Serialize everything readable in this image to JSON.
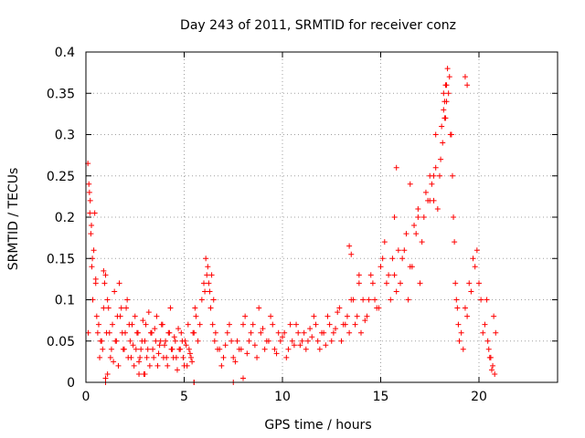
{
  "chart_data": {
    "type": "scatter",
    "title": "Day 243 of 2011, SRMTID for receiver conz",
    "xlabel": "GPS time / hours",
    "ylabel": "SRMTID / TECUs",
    "xlim": [
      0,
      24
    ],
    "ylim": [
      0,
      0.4
    ],
    "xticks": [
      0,
      5,
      10,
      15,
      20
    ],
    "xtick_labels": [
      "0",
      "5",
      "10",
      "15",
      "20"
    ],
    "yticks": [
      0,
      0.05,
      0.1,
      0.15,
      0.2,
      0.25,
      0.3,
      0.35,
      0.4
    ],
    "ytick_labels": [
      "0",
      "0.05",
      "0.1",
      "0.15",
      "0.2",
      "0.25",
      "0.3",
      "0.35",
      "0.4"
    ],
    "grid": true,
    "marker": "+",
    "color": "#ff0000",
    "series": [
      {
        "name": "SRMTID",
        "x": [
          0.1,
          0.15,
          0.2,
          0.25,
          0.3,
          0.35,
          0.4,
          0.45,
          0.5,
          0.55,
          0.6,
          0.7,
          0.8,
          0.9,
          1.0,
          1.1,
          1.2,
          1.3,
          1.4,
          1.5,
          1.6,
          1.7,
          1.8,
          1.9,
          2.0,
          2.1,
          2.2,
          2.3,
          2.4,
          2.5,
          2.6,
          2.7,
          2.8,
          2.9,
          3.0,
          3.1,
          3.2,
          3.3,
          3.4,
          3.5,
          3.6,
          3.7,
          3.8,
          3.9,
          4.0,
          4.1,
          4.2,
          4.3,
          4.4,
          4.5,
          4.6,
          4.7,
          4.8,
          4.9,
          5.0,
          5.1,
          5.2,
          5.3,
          5.4,
          5.5,
          5.6,
          5.8,
          6.0,
          6.1,
          6.2,
          6.3,
          6.4,
          6.5,
          6.6,
          6.8,
          7.0,
          7.2,
          7.4,
          7.6,
          7.8,
          8.0,
          8.2,
          8.4,
          8.6,
          8.8,
          9.0,
          9.2,
          9.4,
          9.6,
          9.8,
          10.0,
          10.2,
          10.4,
          10.6,
          10.8,
          11.0,
          11.2,
          11.4,
          11.6,
          11.8,
          12.0,
          12.2,
          12.4,
          12.6,
          12.8,
          13.0,
          13.2,
          13.4,
          13.6,
          13.8,
          14.0,
          14.2,
          14.4,
          14.6,
          14.8,
          15.0,
          15.2,
          15.4,
          15.6,
          15.8,
          16.0,
          16.2,
          16.4,
          16.6,
          16.8,
          17.0,
          17.2,
          17.4,
          17.6,
          17.8,
          18.0,
          18.1,
          18.2,
          18.3,
          18.4,
          18.5,
          18.6,
          18.7,
          18.8,
          18.9,
          19.0,
          19.2,
          19.4,
          19.6,
          19.8,
          20.0,
          20.2,
          20.4,
          20.5,
          20.6,
          20.7,
          20.8,
          0.12,
          0.18,
          0.22,
          0.28,
          0.33,
          0.5,
          0.65,
          0.75,
          0.85,
          0.95,
          1.05,
          1.15,
          1.25,
          1.35,
          1.45,
          1.55,
          1.65,
          1.75,
          1.85,
          1.95,
          2.05,
          2.15,
          2.25,
          2.35,
          2.45,
          2.55,
          2.65,
          2.75,
          2.85,
          2.95,
          3.05,
          3.15,
          3.25,
          3.35,
          3.45,
          3.55,
          3.65,
          3.75,
          3.85,
          3.95,
          4.05,
          4.15,
          4.25,
          4.35,
          4.45,
          4.55,
          4.65,
          4.75,
          4.85,
          4.95,
          5.05,
          5.15,
          5.25,
          5.35,
          5.45,
          5.55,
          5.7,
          5.9,
          6.05,
          6.15,
          6.25,
          6.35,
          6.45,
          6.55,
          6.7,
          6.9,
          7.1,
          7.3,
          7.5,
          7.7,
          7.9,
          8.1,
          8.3,
          8.5,
          8.7,
          8.9,
          9.1,
          9.3,
          9.5,
          9.7,
          9.9,
          10.1,
          10.3,
          10.5,
          10.7,
          10.9,
          11.1,
          11.3,
          11.5,
          11.7,
          11.9,
          12.1,
          12.3,
          12.5,
          12.7,
          12.9,
          13.1,
          13.3,
          13.5,
          13.7,
          13.9,
          14.1,
          14.3,
          14.5,
          14.7,
          14.9,
          15.1,
          15.3,
          15.5,
          15.7,
          15.9,
          16.1,
          16.3,
          16.5,
          16.7,
          16.9,
          17.1,
          17.3,
          17.5,
          17.7,
          17.9,
          18.05,
          18.15,
          18.25,
          18.35,
          18.45,
          18.55,
          18.65,
          18.75,
          18.85,
          18.95,
          19.1,
          19.3,
          19.5,
          19.7,
          19.9,
          20.1,
          20.3,
          20.45,
          20.55,
          20.65,
          20.75,
          20.85,
          1.0,
          1.0,
          1.1,
          2.7,
          3.0,
          5.5,
          5.5,
          7.5,
          8.0,
          0.9,
          17.8,
          18.2,
          18.25,
          18.3,
          18.35,
          19.3,
          19.4,
          17.5,
          17.7,
          15.7,
          15.8,
          16.5,
          16.9,
          13.4,
          13.5,
          13.9
        ],
        "y": [
          0.265,
          0.24,
          0.205,
          0.18,
          0.14,
          0.1,
          0.16,
          0.205,
          0.125,
          0.08,
          0.06,
          0.03,
          0.05,
          0.09,
          0.13,
          0.1,
          0.06,
          0.04,
          0.025,
          0.05,
          0.08,
          0.12,
          0.09,
          0.04,
          0.06,
          0.1,
          0.07,
          0.03,
          0.045,
          0.08,
          0.06,
          0.025,
          0.04,
          0.075,
          0.05,
          0.03,
          0.085,
          0.06,
          0.04,
          0.065,
          0.08,
          0.035,
          0.05,
          0.07,
          0.045,
          0.03,
          0.06,
          0.09,
          0.04,
          0.055,
          0.03,
          0.065,
          0.04,
          0.05,
          0.02,
          0.045,
          0.07,
          0.035,
          0.025,
          0.06,
          0.08,
          0.07,
          0.12,
          0.15,
          0.14,
          0.11,
          0.13,
          0.1,
          0.06,
          0.04,
          0.03,
          0.06,
          0.05,
          0.025,
          0.04,
          0.07,
          0.035,
          0.06,
          0.045,
          0.09,
          0.065,
          0.05,
          0.08,
          0.04,
          0.06,
          0.055,
          0.03,
          0.07,
          0.045,
          0.06,
          0.05,
          0.04,
          0.065,
          0.08,
          0.05,
          0.06,
          0.045,
          0.07,
          0.06,
          0.085,
          0.05,
          0.07,
          0.06,
          0.1,
          0.08,
          0.06,
          0.075,
          0.1,
          0.12,
          0.09,
          0.14,
          0.17,
          0.13,
          0.15,
          0.11,
          0.12,
          0.16,
          0.1,
          0.14,
          0.18,
          0.12,
          0.2,
          0.22,
          0.24,
          0.26,
          0.25,
          0.31,
          0.33,
          0.36,
          0.38,
          0.37,
          0.3,
          0.2,
          0.12,
          0.09,
          0.05,
          0.04,
          0.08,
          0.11,
          0.14,
          0.12,
          0.06,
          0.1,
          0.04,
          0.03,
          0.02,
          0.01,
          0.06,
          0.23,
          0.22,
          0.19,
          0.15,
          0.12,
          0.07,
          0.05,
          0.04,
          0.12,
          0.06,
          0.09,
          0.03,
          0.07,
          0.11,
          0.05,
          0.02,
          0.08,
          0.06,
          0.04,
          0.09,
          0.03,
          0.05,
          0.07,
          0.02,
          0.04,
          0.06,
          0.03,
          0.05,
          0.01,
          0.07,
          0.04,
          0.02,
          0.06,
          0.03,
          0.05,
          0.02,
          0.045,
          0.07,
          0.03,
          0.05,
          0.02,
          0.06,
          0.04,
          0.03,
          0.05,
          0.015,
          0.04,
          0.06,
          0.03,
          0.05,
          0.02,
          0.04,
          0.03,
          0.06,
          0.09,
          0.05,
          0.1,
          0.11,
          0.13,
          0.12,
          0.09,
          0.07,
          0.05,
          0.04,
          0.02,
          0.045,
          0.07,
          0.03,
          0.05,
          0.04,
          0.08,
          0.05,
          0.07,
          0.03,
          0.06,
          0.04,
          0.05,
          0.07,
          0.035,
          0.05,
          0.06,
          0.04,
          0.05,
          0.07,
          0.045,
          0.06,
          0.05,
          0.055,
          0.07,
          0.04,
          0.06,
          0.08,
          0.05,
          0.065,
          0.09,
          0.07,
          0.08,
          0.1,
          0.07,
          0.12,
          0.1,
          0.08,
          0.13,
          0.1,
          0.09,
          0.15,
          0.12,
          0.1,
          0.13,
          0.16,
          0.15,
          0.18,
          0.14,
          0.19,
          0.2,
          0.17,
          0.23,
          0.22,
          0.25,
          0.21,
          0.27,
          0.29,
          0.32,
          0.34,
          0.35,
          0.3,
          0.25,
          0.17,
          0.1,
          0.07,
          0.06,
          0.09,
          0.12,
          0.15,
          0.16,
          0.1,
          0.07,
          0.05,
          0.03,
          0.015,
          0.08,
          0.06,
          0.005,
          0.0,
          0.01,
          0.01,
          0.01,
          0.0,
          0.0,
          0.0,
          0.005,
          0.135,
          0.3,
          0.35,
          0.34,
          0.32,
          0.36,
          0.37,
          0.36,
          0.25,
          0.22,
          0.2,
          0.26,
          0.24,
          0.21,
          0.165,
          0.155,
          0.13
        ]
      }
    ]
  }
}
